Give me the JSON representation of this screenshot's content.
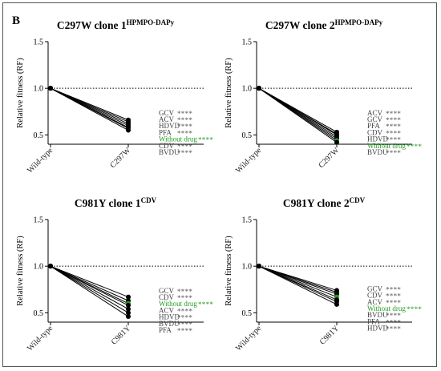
{
  "panel_label": "B",
  "colors": {
    "line": "#000000",
    "green": "#22a022",
    "gray_label": "#444444",
    "stars": "#555555"
  },
  "chart_data": [
    {
      "type": "line",
      "title": "C297W clone 1",
      "title_superscript": "HPMPO-DAPy",
      "ylabel": "Relative fitness (RF)",
      "categories": [
        "Wild-type",
        "C297W"
      ],
      "ylim": [
        0.4,
        1.5
      ],
      "yticks": [
        "0.5",
        "1.0",
        "1.5"
      ],
      "reference_line": 1.0,
      "series": [
        {
          "name": "GCV",
          "values": [
            1.0,
            0.66
          ],
          "stars": "****"
        },
        {
          "name": "ACV",
          "values": [
            1.0,
            0.64
          ],
          "stars": "****"
        },
        {
          "name": "HDVD",
          "values": [
            1.0,
            0.62
          ],
          "stars": "****"
        },
        {
          "name": "PFA",
          "values": [
            1.0,
            0.6
          ],
          "stars": "****"
        },
        {
          "name": "Without drug",
          "values": [
            1.0,
            0.57
          ],
          "stars": "****",
          "highlight": true
        },
        {
          "name": "CDV",
          "values": [
            1.0,
            0.58
          ],
          "stars": "****"
        },
        {
          "name": "BVDU",
          "values": [
            1.0,
            0.55
          ],
          "stars": "****"
        }
      ]
    },
    {
      "type": "line",
      "title": "C297W clone 2",
      "title_superscript": "HPMPO-DAPy",
      "ylabel": "Relative fitness (RF)",
      "categories": [
        "Wild-type",
        "C297W"
      ],
      "ylim": [
        0.4,
        1.5
      ],
      "yticks": [
        "0.5",
        "1.0",
        "1.5"
      ],
      "reference_line": 1.0,
      "series": [
        {
          "name": "ACV",
          "values": [
            1.0,
            0.53
          ],
          "stars": "****"
        },
        {
          "name": "GCV",
          "values": [
            1.0,
            0.51
          ],
          "stars": "****"
        },
        {
          "name": "PFA",
          "values": [
            1.0,
            0.5
          ],
          "stars": "****"
        },
        {
          "name": "CDV",
          "values": [
            1.0,
            0.48
          ],
          "stars": "****"
        },
        {
          "name": "HDVD",
          "values": [
            1.0,
            0.46
          ],
          "stars": "****"
        },
        {
          "name": "Without drug",
          "values": [
            1.0,
            0.44
          ],
          "stars": "****",
          "highlight": true
        },
        {
          "name": "BVDU",
          "values": [
            1.0,
            0.42
          ],
          "stars": "****"
        }
      ]
    },
    {
      "type": "line",
      "title": "C981Y clone 1",
      "title_superscript": "CDV",
      "ylabel": "Relative fitness (RF)",
      "categories": [
        "Wild-type",
        "C981Y"
      ],
      "ylim": [
        0.4,
        1.5
      ],
      "yticks": [
        "0.5",
        "1.0",
        "1.5"
      ],
      "reference_line": 1.0,
      "series": [
        {
          "name": "GCV",
          "values": [
            1.0,
            0.67
          ],
          "stars": "****"
        },
        {
          "name": "CDV",
          "values": [
            1.0,
            0.63
          ],
          "stars": "****"
        },
        {
          "name": "Without drug",
          "values": [
            1.0,
            0.6
          ],
          "stars": "****",
          "highlight": true
        },
        {
          "name": "ACV",
          "values": [
            1.0,
            0.58
          ],
          "stars": "****"
        },
        {
          "name": "HDVD",
          "values": [
            1.0,
            0.54
          ],
          "stars": "****"
        },
        {
          "name": "BVDU",
          "values": [
            1.0,
            0.5
          ],
          "stars": "****"
        },
        {
          "name": "PFA",
          "values": [
            1.0,
            0.46
          ],
          "stars": "****"
        }
      ]
    },
    {
      "type": "line",
      "title": "C981Y clone 2",
      "title_superscript": "CDV",
      "ylabel": "Relative fitness (RF)",
      "categories": [
        "Wild-type",
        "C981Y"
      ],
      "ylim": [
        0.4,
        1.5
      ],
      "yticks": [
        "0.5",
        "1.0",
        "1.5"
      ],
      "reference_line": 1.0,
      "series": [
        {
          "name": "GCV",
          "values": [
            1.0,
            0.74
          ],
          "stars": "****"
        },
        {
          "name": "CDV",
          "values": [
            1.0,
            0.72
          ],
          "stars": "****"
        },
        {
          "name": "ACV",
          "values": [
            1.0,
            0.7
          ],
          "stars": "****"
        },
        {
          "name": "Without drug",
          "values": [
            1.0,
            0.67
          ],
          "stars": "****",
          "highlight": true
        },
        {
          "name": "BVDU",
          "values": [
            1.0,
            0.64
          ],
          "stars": "****"
        },
        {
          "name": "PFA",
          "values": [
            1.0,
            0.62
          ],
          "stars": "****"
        },
        {
          "name": "HDVD",
          "values": [
            1.0,
            0.59
          ],
          "stars": "****"
        }
      ]
    }
  ]
}
